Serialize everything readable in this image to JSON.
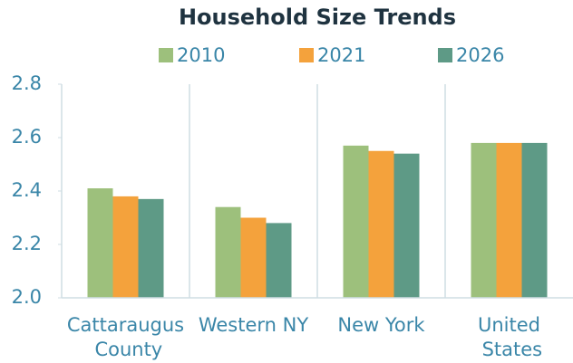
{
  "chart_data": {
    "type": "bar",
    "title": "Household Size Trends",
    "categories": [
      "Cattaraugus County",
      "Western NY",
      "New York",
      "United States"
    ],
    "series": [
      {
        "name": "2010",
        "color": "#9dc07c",
        "values": [
          2.41,
          2.34,
          2.57,
          2.58
        ]
      },
      {
        "name": "2021",
        "color": "#f4a23c",
        "values": [
          2.38,
          2.3,
          2.55,
          2.58
        ]
      },
      {
        "name": "2026",
        "color": "#5e9a86",
        "values": [
          2.37,
          2.28,
          2.54,
          2.58
        ]
      }
    ],
    "ylim": [
      2.0,
      2.8
    ],
    "yticks": [
      {
        "value": 2.0,
        "label": "2.0"
      },
      2.2,
      2.4,
      2.6,
      {
        "value": 2.8,
        "label": "2.8"
      }
    ],
    "legend": "top"
  }
}
